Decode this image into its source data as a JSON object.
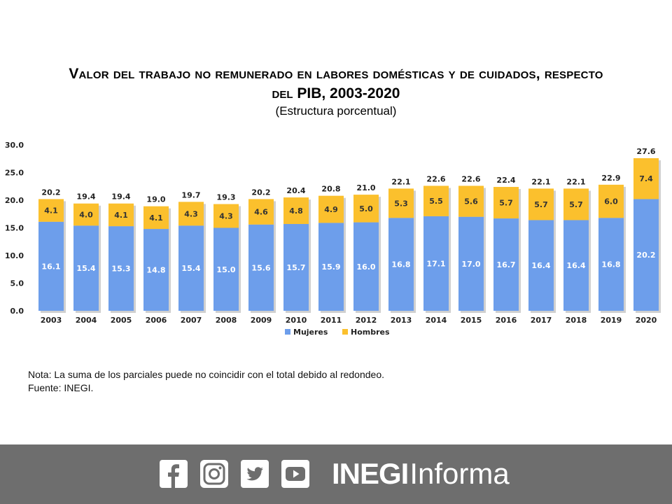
{
  "title": {
    "line1": "Valor del trabajo no remunerado en labores domésticas y de cuidados, respecto",
    "line2": "del PIB, 2003-2020",
    "subtitle": "(Estructura porcentual)"
  },
  "chart_data": {
    "type": "bar",
    "stacked": true,
    "title": "Valor del trabajo no remunerado en labores domésticas y de cuidados, respecto del PIB, 2003-2020",
    "subtitle": "(Estructura porcentual)",
    "categories": [
      "2003",
      "2004",
      "2005",
      "2006",
      "2007",
      "2008",
      "2009",
      "2010",
      "2011",
      "2012",
      "2013",
      "2014",
      "2015",
      "2016",
      "2017",
      "2018",
      "2019",
      "2020"
    ],
    "series": [
      {
        "name": "Mujeres",
        "color": "#6d9eeb",
        "values": [
          16.1,
          15.4,
          15.3,
          14.8,
          15.4,
          15.0,
          15.6,
          15.7,
          15.9,
          16.0,
          16.8,
          17.1,
          17.0,
          16.7,
          16.4,
          16.4,
          16.8,
          20.2
        ]
      },
      {
        "name": "Hombres",
        "color": "#fbc02d",
        "values": [
          4.1,
          4.0,
          4.1,
          4.1,
          4.3,
          4.3,
          4.6,
          4.8,
          4.9,
          5.0,
          5.3,
          5.5,
          5.6,
          5.7,
          5.7,
          5.7,
          6.0,
          7.4
        ]
      }
    ],
    "totals": [
      20.2,
      19.4,
      19.4,
      19.0,
      19.7,
      19.3,
      20.2,
      20.4,
      20.8,
      21.0,
      22.1,
      22.6,
      22.6,
      22.4,
      22.1,
      22.1,
      22.9,
      27.6
    ],
    "yticks": [
      "0.0",
      "5.0",
      "10.0",
      "15.0",
      "20.0",
      "25.0",
      "30.0"
    ],
    "ylim": [
      0,
      30
    ],
    "legend": "bottom",
    "grid": false
  },
  "note": {
    "line1": "Nota: La suma de los parciales puede no coincidir con el total debido al redondeo.",
    "line2": "Fuente: INEGI."
  },
  "footer": {
    "brand_bold": "INEGI",
    "brand_regular": "Informa",
    "icons": [
      "facebook-icon",
      "instagram-icon",
      "twitter-icon",
      "youtube-icon"
    ]
  }
}
